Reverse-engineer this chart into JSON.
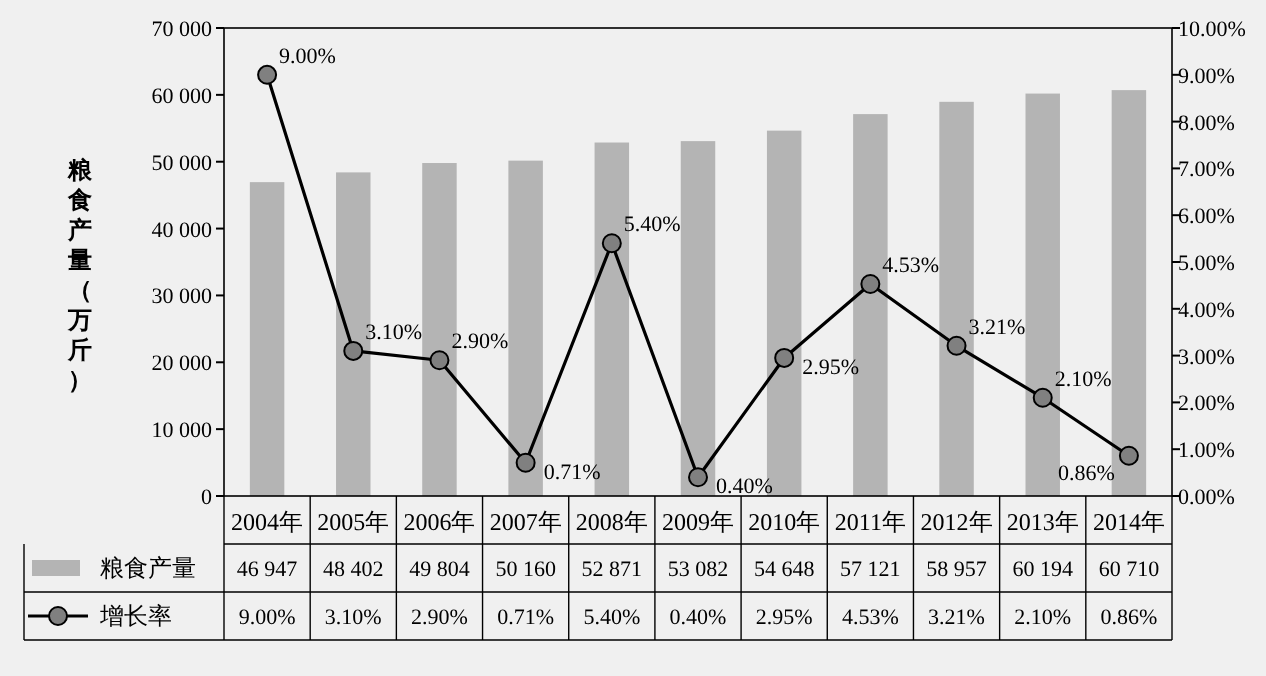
{
  "chart_data": {
    "type": "bar",
    "ylabel": "粮食产量（万斤）",
    "categories": [
      "2004年",
      "2005年",
      "2006年",
      "2007年",
      "2008年",
      "2009年",
      "2010年",
      "2011年",
      "2012年",
      "2013年",
      "2014年"
    ],
    "series": [
      {
        "name": "粮食产量",
        "color": "#b4b4b4",
        "values": [
          46947,
          48402,
          49804,
          50160,
          52871,
          53082,
          54648,
          57121,
          58957,
          60194,
          60710
        ],
        "value_labels": [
          "46 947",
          "48 402",
          "49 804",
          "50 160",
          "52 871",
          "53 082",
          "54 648",
          "57 121",
          "58 957",
          "60 194",
          "60 710"
        ]
      },
      {
        "name": "增长率",
        "type": "line",
        "axis": "y2",
        "color": "#000000",
        "marker": "circle",
        "line_style": "solid",
        "values": [
          9.0,
          3.1,
          2.9,
          0.71,
          5.4,
          0.4,
          2.95,
          4.53,
          3.21,
          2.1,
          0.86
        ],
        "value_labels": [
          "9.00%",
          "3.10%",
          "2.90%",
          "0.71%",
          "5.40%",
          "0.40%",
          "2.95%",
          "4.53%",
          "3.21%",
          "2.10%",
          "0.86%"
        ]
      }
    ],
    "ylim": [
      0,
      70000
    ],
    "yticks": [
      0,
      {
        "value": 10000,
        "label": "10 000"
      },
      {
        "value": 20000,
        "label": "20 000"
      },
      {
        "value": 30000,
        "label": "30 000"
      },
      {
        "value": 40000,
        "label": "40 000"
      },
      {
        "value": 50000,
        "label": "50 000"
      },
      {
        "value": 60000,
        "label": "60 000"
      },
      {
        "value": 70000,
        "label": "70 000"
      }
    ],
    "y2lim": [
      0,
      10
    ],
    "y2ticks": [
      {
        "value": 0,
        "label": "0.00%"
      },
      {
        "value": 1,
        "label": "1.00%"
      },
      {
        "value": 2,
        "label": "2.00%"
      },
      {
        "value": 3,
        "label": "3.00%"
      },
      {
        "value": 4,
        "label": "4.00%"
      },
      {
        "value": 5,
        "label": "5.00%"
      },
      {
        "value": 6,
        "label": "6.00%"
      },
      {
        "value": 7,
        "label": "7.00%"
      },
      {
        "value": 8,
        "label": "8.00%"
      },
      {
        "value": 9,
        "label": "9.00%"
      },
      {
        "value": 10,
        "label": "10.00%"
      }
    ],
    "grid": false,
    "legend": "bottom"
  }
}
